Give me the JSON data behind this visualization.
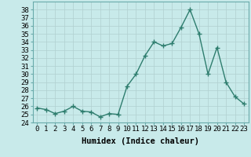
{
  "x": [
    0,
    1,
    2,
    3,
    4,
    5,
    6,
    7,
    8,
    9,
    10,
    11,
    12,
    13,
    14,
    15,
    16,
    17,
    18,
    19,
    20,
    21,
    22,
    23
  ],
  "y": [
    25.8,
    25.6,
    25.1,
    25.4,
    26.0,
    25.4,
    25.3,
    24.7,
    25.1,
    25.0,
    28.5,
    30.0,
    32.3,
    34.0,
    33.5,
    33.8,
    35.8,
    38.0,
    35.0,
    30.0,
    33.3,
    29.0,
    27.2,
    26.3
  ],
  "line_color": "#2e7d6e",
  "marker": "+",
  "marker_size": 4,
  "linewidth": 1.0,
  "bg_color": "#c8eaea",
  "grid_color": "#b0d0d0",
  "xlabel": "Humidex (Indice chaleur)",
  "ylim": [
    24,
    39
  ],
  "xlim": [
    -0.5,
    23.5
  ],
  "yticks": [
    24,
    25,
    26,
    27,
    28,
    29,
    30,
    31,
    32,
    33,
    34,
    35,
    36,
    37,
    38
  ],
  "xtick_labels": [
    "0",
    "1",
    "2",
    "3",
    "4",
    "5",
    "6",
    "7",
    "8",
    "9",
    "10",
    "11",
    "12",
    "13",
    "14",
    "15",
    "16",
    "17",
    "18",
    "19",
    "20",
    "21",
    "22",
    "23"
  ],
  "xlabel_fontsize": 7.5,
  "tick_fontsize": 6.5
}
